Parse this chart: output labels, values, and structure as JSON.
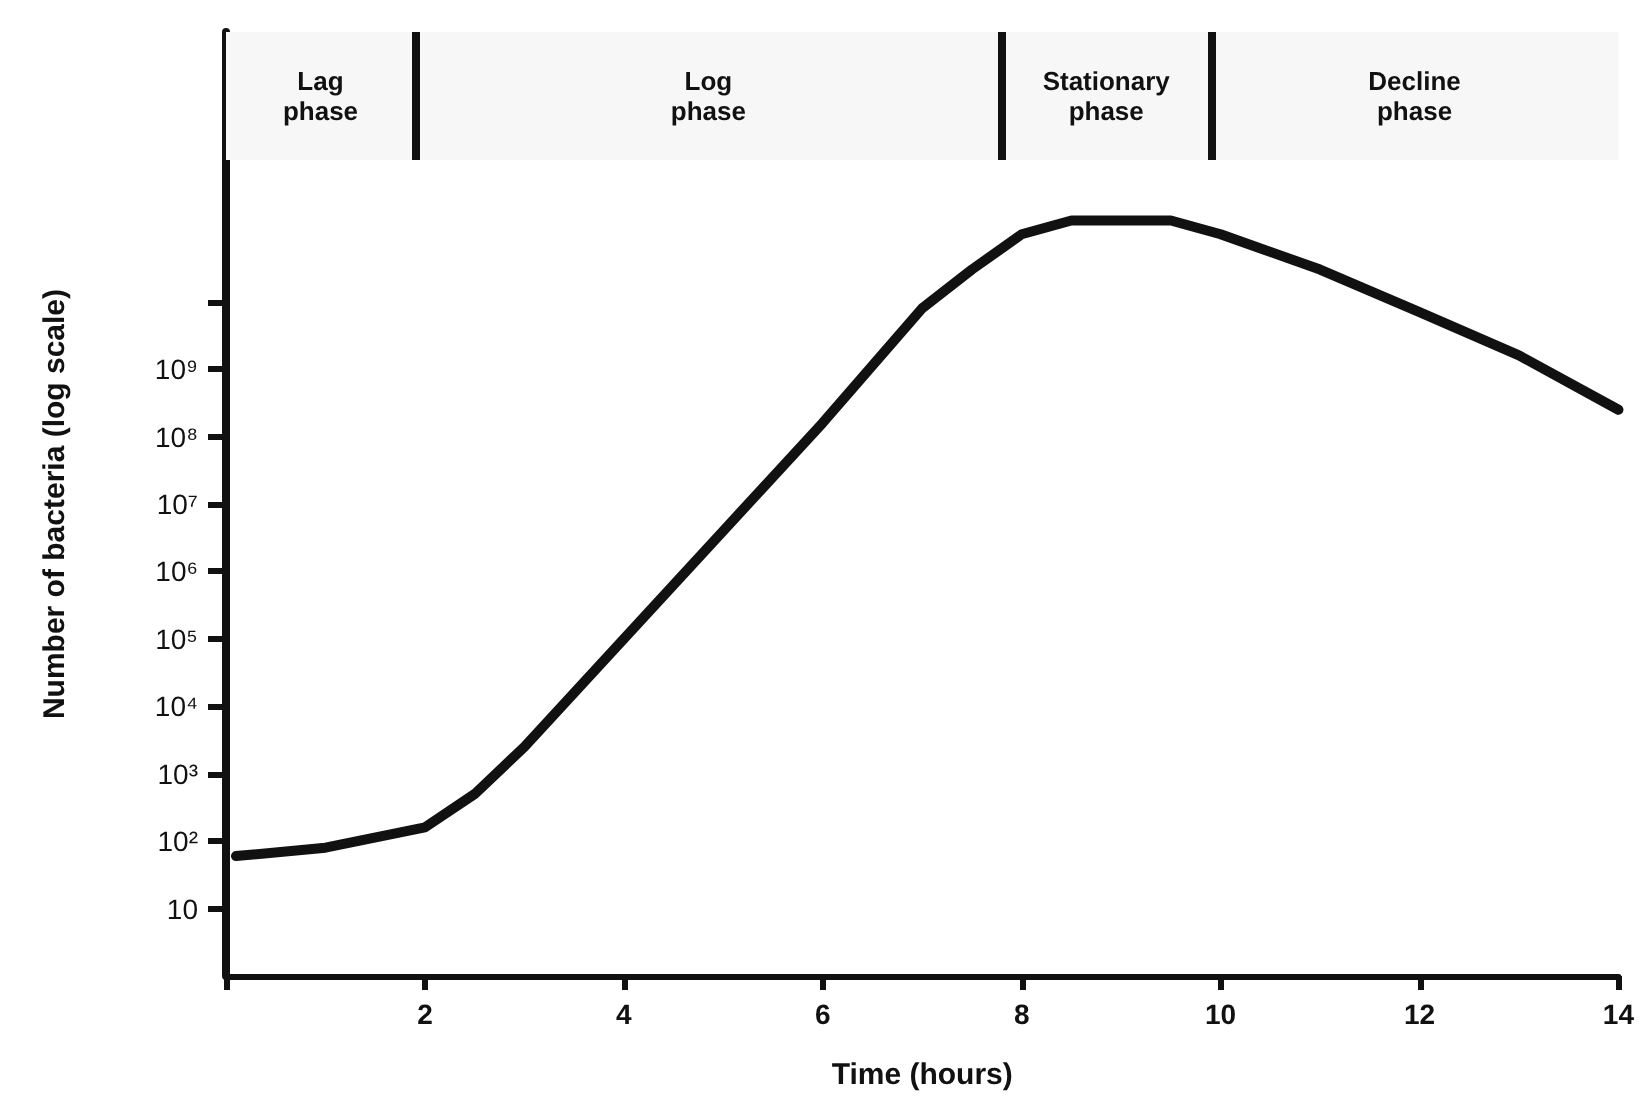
{
  "chart_data": {
    "type": "line",
    "xlabel": "Time (hours)",
    "ylabel": "Number of bacteria (log scale)",
    "x": [
      0.1,
      1,
      2,
      2.5,
      3,
      4,
      5,
      6,
      7,
      7.5,
      8,
      8.5,
      9.5,
      10,
      11,
      12,
      13,
      14
    ],
    "series": [
      {
        "color": "#111111",
        "values": [
          60,
          80,
          160,
          500,
          2500,
          100000,
          4000000,
          160000000,
          8000000000,
          30000000000,
          100000000000,
          160000000000,
          160000000000,
          100000000000,
          30000000000,
          7000000000,
          1600000000,
          250000000
        ]
      }
    ],
    "log": "y",
    "xlim": [
      0,
      14
    ],
    "xticks": [
      {
        "value": 0,
        "label": null
      },
      2,
      4,
      6,
      8,
      10,
      12,
      14
    ],
    "ylim": [
      1,
      100000000000000
    ],
    "yticks": [
      10,
      {
        "value": 100,
        "label": "10²"
      },
      {
        "value": 1000,
        "label": "10³"
      },
      {
        "value": 10000,
        "label": "10⁴"
      },
      {
        "value": 100000,
        "label": "10⁵"
      },
      {
        "value": 1000000,
        "label": "10⁶"
      },
      {
        "value": 10000000,
        "label": "10⁷"
      },
      {
        "value": 100000000,
        "label": "10⁸"
      },
      {
        "value": 1000000000,
        "label": "10⁹"
      },
      {
        "value": 10000000000,
        "label": null
      }
    ],
    "bands": [
      {
        "axis": "x",
        "from": 0,
        "to": 1.9,
        "label": "Lag phase",
        "color": "#f7f7f7"
      },
      {
        "axis": "x",
        "from": 1.9,
        "to": 7.8,
        "label": "Log phase",
        "color": "#f7f7f7"
      },
      {
        "axis": "x",
        "from": 7.8,
        "to": 9.9,
        "label": "Stationary phase",
        "color": "#f7f7f7"
      },
      {
        "axis": "x",
        "from": 9.9,
        "to": 14,
        "label": "Decline phase",
        "color": "#f7f7f7"
      }
    ],
    "ref_lines": [
      {
        "axis": "x",
        "value": 1.9
      },
      {
        "axis": "x",
        "value": 7.8
      },
      {
        "axis": "x",
        "value": 9.9
      }
    ],
    "marker": "none",
    "line_style": "solid"
  }
}
